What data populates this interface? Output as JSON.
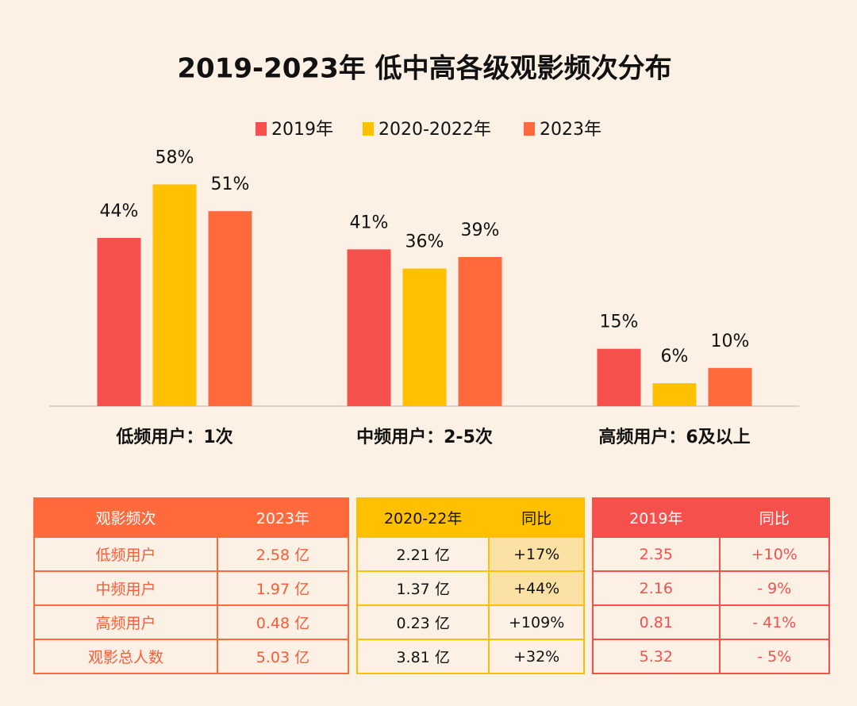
{
  "chart_data": {
    "type": "bar",
    "title": "2019-2023年 低中高各级观影频次分布",
    "categories": [
      "低频用户：1次",
      "中频用户：2-5次",
      "高频用户：6及以上"
    ],
    "series": [
      {
        "name": "2019年",
        "color": "#f5504c",
        "values": [
          44,
          41,
          15
        ],
        "value_labels": [
          "44%",
          "41%",
          "15%"
        ]
      },
      {
        "name": "2020-2022年",
        "color": "#ffc000",
        "values": [
          58,
          36,
          6
        ],
        "value_labels": [
          "58%",
          "36%",
          "6%"
        ]
      },
      {
        "name": "2023年",
        "color": "#ff6a3d",
        "values": [
          51,
          39,
          10
        ],
        "value_labels": [
          "51%",
          "39%",
          "10%"
        ]
      }
    ],
    "legend": "top"
  },
  "tables": [
    {
      "color": "#ff6a3d",
      "header": [
        "观影频次",
        "2023年"
      ],
      "rows": [
        [
          "低频用户",
          "2.58 亿"
        ],
        [
          "中频用户",
          "1.97 亿"
        ],
        [
          "高频用户",
          "0.48 亿"
        ],
        [
          "观影总人数",
          "5.03 亿"
        ]
      ]
    },
    {
      "color": "#ffc000",
      "header": [
        "2020-22年",
        "同比"
      ],
      "rows": [
        [
          "2.21 亿",
          "+17%"
        ],
        [
          "1.37 亿",
          "+44%"
        ],
        [
          "0.23 亿",
          "+109%"
        ],
        [
          "3.81 亿",
          "+32%"
        ]
      ]
    },
    {
      "color": "#f5504c",
      "header": [
        "2019年",
        "同比"
      ],
      "rows": [
        [
          "2.35",
          "+10%"
        ],
        [
          "2.16",
          "- 9%"
        ],
        [
          "0.81",
          "- 41%"
        ],
        [
          "5.32",
          "- 5%"
        ]
      ]
    }
  ]
}
